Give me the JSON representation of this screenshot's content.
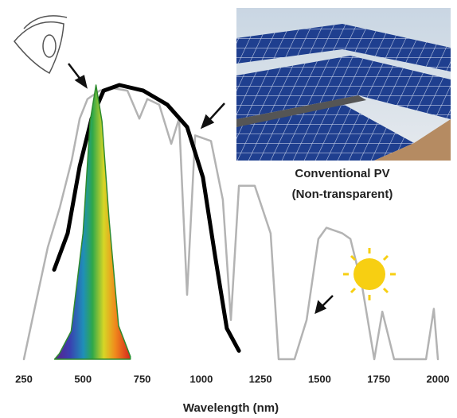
{
  "chart_data": {
    "type": "line",
    "xlabel": "Wavelength (nm)",
    "annotations": [
      "Conventional PV",
      "(Non-transparent)"
    ],
    "xlim": [
      250,
      2000
    ],
    "xticks": [
      250,
      500,
      750,
      1000,
      1250,
      1500,
      1750,
      2000
    ],
    "ylim": [
      0,
      1
    ],
    "series": [
      {
        "color": "#b3b3b3",
        "x": [
          250,
          300,
          351,
          401,
          452,
          486,
          519,
          570,
          620,
          688,
          738,
          772,
          822,
          873,
          906,
          940,
          974,
          1041,
          1091,
          1125,
          1159,
          1226,
          1293,
          1327,
          1394,
          1445,
          1495,
          1529,
          1596,
          1630,
          1680,
          1731,
          1765,
          1815,
          1950,
          1983,
          2000
        ],
        "values": [
          0,
          0.2,
          0.4,
          0.54,
          0.71,
          0.86,
          0.93,
          0.96,
          0.97,
          0.96,
          0.86,
          0.93,
          0.91,
          0.77,
          0.86,
          0.23,
          0.8,
          0.78,
          0.57,
          0.14,
          0.62,
          0.62,
          0.45,
          0,
          0,
          0.14,
          0.43,
          0.47,
          0.45,
          0.43,
          0.26,
          0,
          0.17,
          0,
          0,
          0.18,
          0
        ]
      },
      {
        "color": "#000000",
        "x": [
          378,
          435,
          486,
          536,
          587,
          654,
          755,
          856,
          940,
          1007,
          1058,
          1108,
          1159
        ],
        "values": [
          0.32,
          0.45,
          0.69,
          0.86,
          0.96,
          0.98,
          0.96,
          0.91,
          0.83,
          0.65,
          0.37,
          0.11,
          0.03
        ]
      },
      {
        "color": "#2e8b2e",
        "area": true,
        "x": [
          380,
          400,
          450,
          500,
          530,
          555,
          580,
          610,
          650,
          700
        ],
        "values": [
          0,
          0.02,
          0.1,
          0.45,
          0.85,
          0.98,
          0.85,
          0.5,
          0.12,
          0.01
        ]
      }
    ]
  }
}
